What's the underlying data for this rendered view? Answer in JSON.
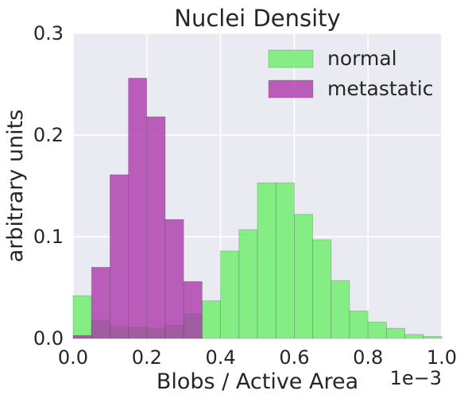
{
  "chart_data": {
    "type": "bar",
    "title": "Nuclei Density",
    "xlabel": "Blobs / Active Area",
    "ylabel": "arbitrary units",
    "x_offset_text": "1e−3",
    "xlim": [
      0.0,
      1.0
    ],
    "ylim": [
      0.0,
      0.3
    ],
    "x_ticks": [
      0.0,
      0.2,
      0.4,
      0.6,
      0.8,
      1.0
    ],
    "x_tick_labels": [
      "0.0",
      "0.2",
      "0.4",
      "0.6",
      "0.8",
      "1.0"
    ],
    "y_ticks": [
      0.0,
      0.1,
      0.2,
      0.3
    ],
    "y_tick_labels": [
      "0.0",
      "0.1",
      "0.2",
      "0.3"
    ],
    "grid": true,
    "legend_position": "upper-right",
    "bins": [
      0.0,
      0.05,
      0.1,
      0.15,
      0.2,
      0.25,
      0.3,
      0.35,
      0.4,
      0.45,
      0.5,
      0.55,
      0.6,
      0.65,
      0.7,
      0.75,
      0.8,
      0.85,
      0.9,
      0.95,
      1.0
    ],
    "series": [
      {
        "name": "normal",
        "color": "#66ee66",
        "values": [
          0.042,
          0.018,
          0.012,
          0.011,
          0.01,
          0.013,
          0.024,
          0.037,
          0.086,
          0.107,
          0.153,
          0.153,
          0.122,
          0.097,
          0.057,
          0.027,
          0.016,
          0.01,
          0.004,
          0.002,
          0.0
        ]
      },
      {
        "name": "metastatic",
        "color": "#aa33aa",
        "values": [
          0.003,
          0.07,
          0.161,
          0.256,
          0.218,
          0.117,
          0.056,
          0.0,
          0.0,
          0.0,
          0.0,
          0.0,
          0.0,
          0.0,
          0.0,
          0.0,
          0.0,
          0.0,
          0.0,
          0.0,
          0.0
        ]
      }
    ]
  }
}
